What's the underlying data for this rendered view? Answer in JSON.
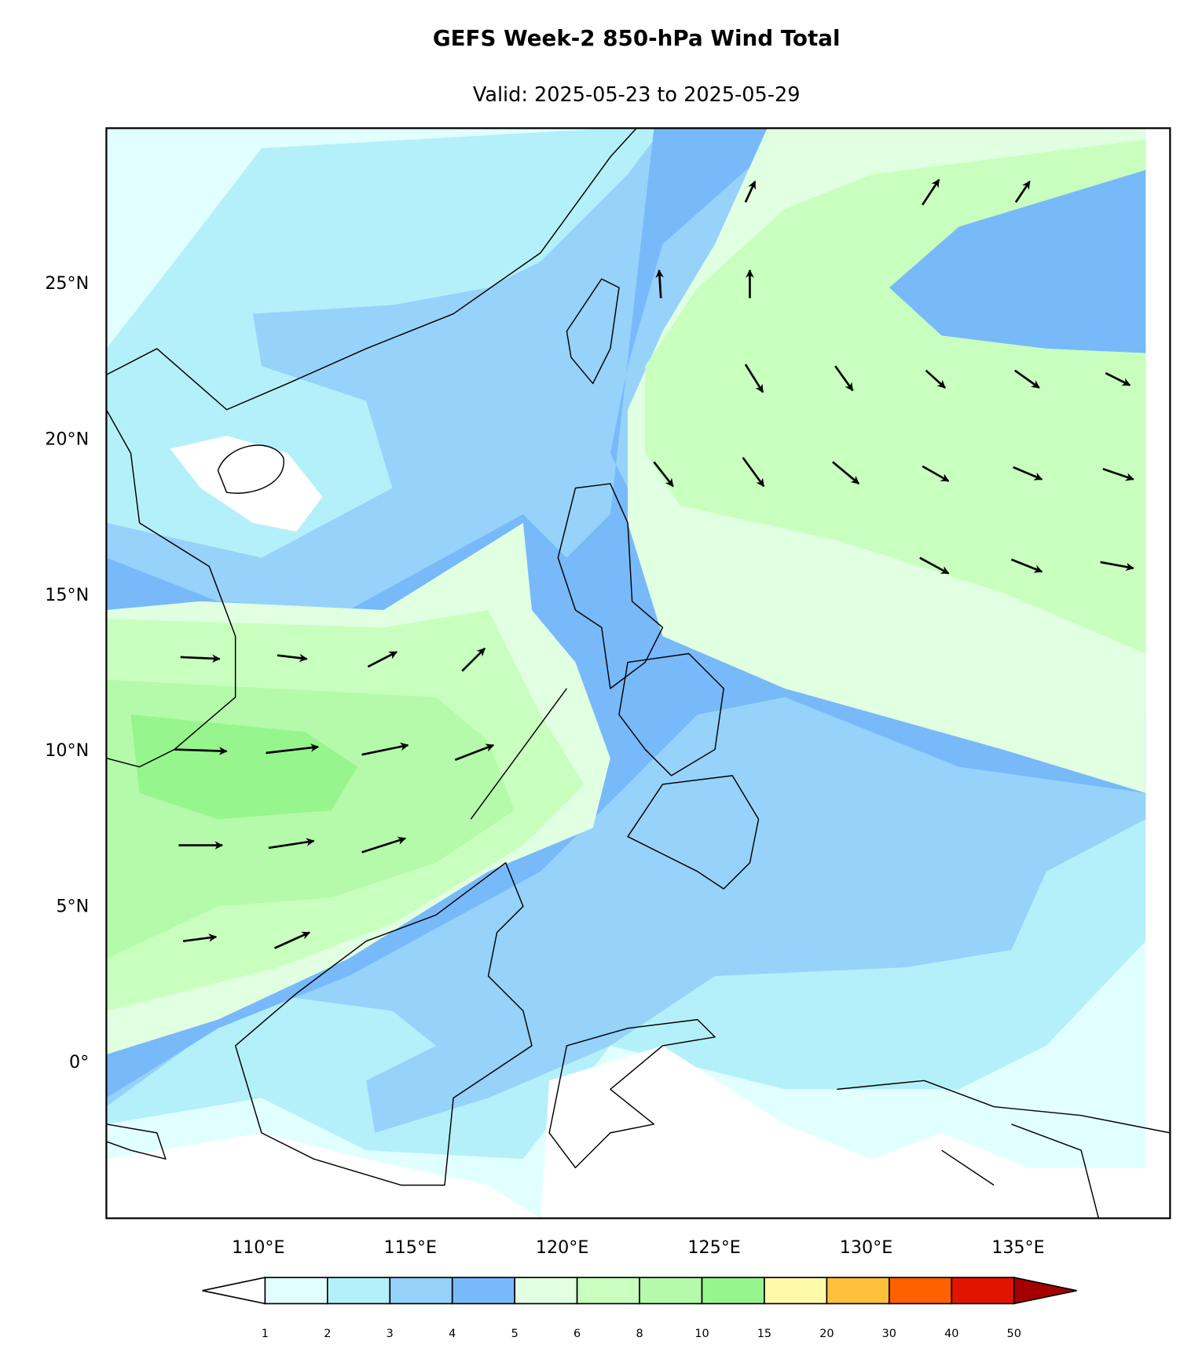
{
  "title": "GEFS Week-2 850-hPa Wind Total",
  "subtitle": "Valid: 2025-05-23 to 2025-05-29",
  "lonlim": [
    105,
    140
  ],
  "latlim": [
    -5,
    30
  ],
  "lat_labels": [
    {
      "value": 25,
      "label": "25°N"
    },
    {
      "value": 20,
      "label": "20°N"
    },
    {
      "value": 15,
      "label": "15°N"
    },
    {
      "value": 10,
      "label": "10°N"
    },
    {
      "value": 5,
      "label": "5°N"
    },
    {
      "value": 0,
      "label": "0°"
    }
  ],
  "lon_labels": [
    {
      "value": 110,
      "label": "110°E"
    },
    {
      "value": 115,
      "label": "115°E"
    },
    {
      "value": 120,
      "label": "120°E"
    },
    {
      "value": 125,
      "label": "125°E"
    },
    {
      "value": 130,
      "label": "130°E"
    },
    {
      "value": 135,
      "label": "135°E"
    }
  ],
  "colorbar": {
    "levels": [
      1,
      2,
      3,
      4,
      5,
      6,
      8,
      10,
      15,
      20,
      30,
      40,
      50
    ],
    "colors": [
      "#e1ffff",
      "#b4f0fa",
      "#96d2fa",
      "#78b9fa",
      "#e1ffe1",
      "#c8ffbe",
      "#b4faaa",
      "#96f58c",
      "#fffaaa",
      "#ffc03c",
      "#ff6000",
      "#e11400"
    ],
    "under_color": "#ffffff",
    "over_color": "#a50000"
  }
}
